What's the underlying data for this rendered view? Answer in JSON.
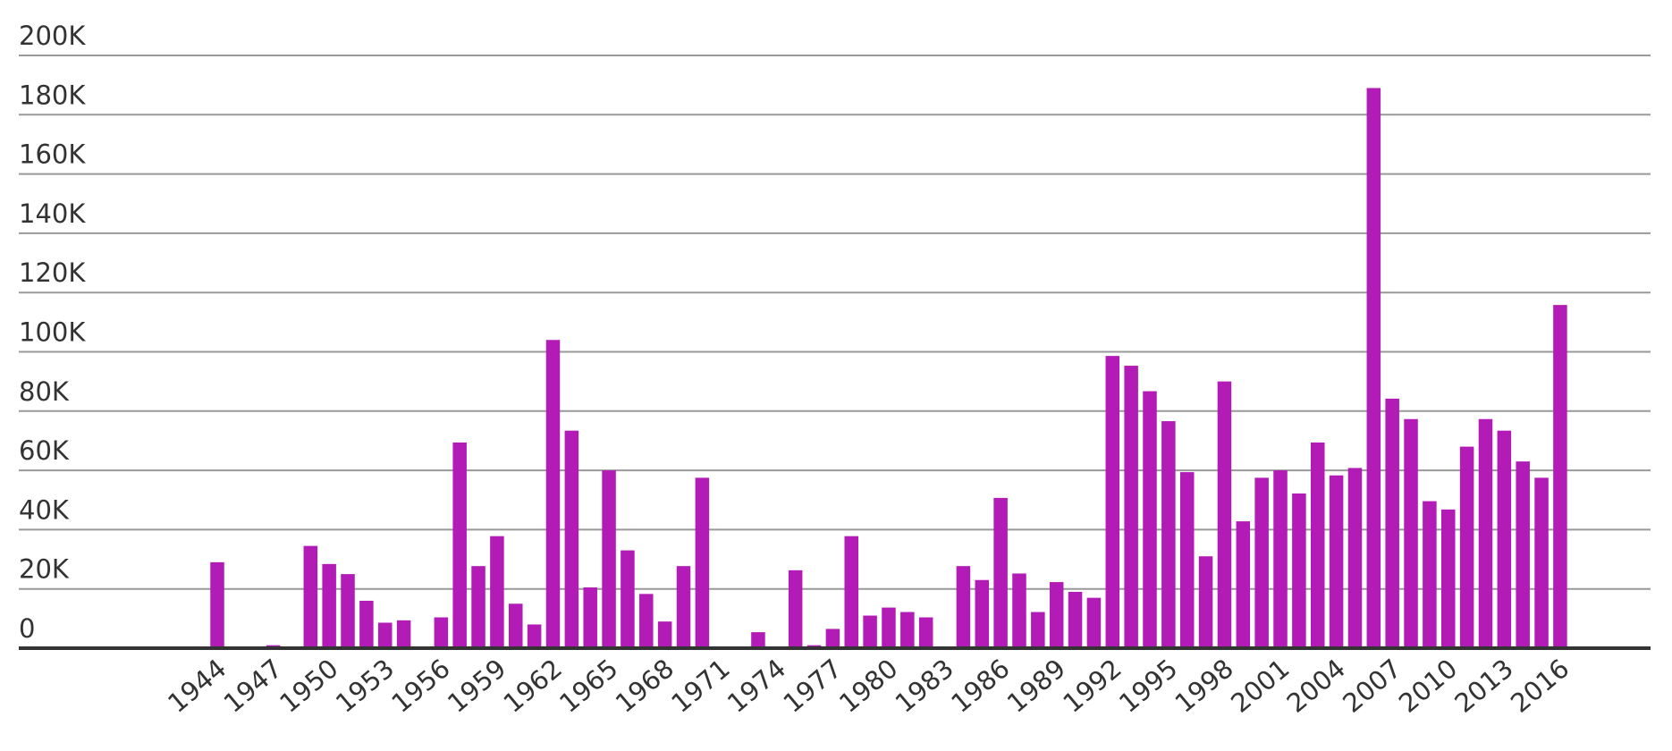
{
  "chart_data": {
    "type": "bar",
    "color": "#b21bb5",
    "grid": true,
    "categories": [
      "1944",
      null,
      null,
      "1947",
      null,
      null,
      "1950",
      null,
      null,
      "1953",
      null,
      null,
      "1956",
      null,
      null,
      "1959",
      null,
      null,
      "1962",
      null,
      null,
      "1965",
      null,
      null,
      "1968",
      null,
      null,
      "1971",
      null,
      null,
      "1974",
      null,
      null,
      "1977",
      null,
      null,
      "1980",
      null,
      null,
      "1983",
      null,
      null,
      "1986",
      null,
      null,
      "1989",
      null,
      null,
      "1992",
      null,
      null,
      "1995",
      null,
      null,
      "1998",
      null,
      null,
      "2001",
      null,
      null,
      "2004",
      null,
      null,
      "2007",
      null,
      null,
      "2010",
      null,
      null,
      "2013",
      null,
      null,
      "2016"
    ],
    "values": [
      29000,
      0,
      0,
      1000,
      0,
      34500,
      28400,
      25000,
      16000,
      8600,
      9400,
      0,
      10400,
      69400,
      27700,
      37800,
      15000,
      8000,
      104000,
      73400,
      20500,
      60000,
      33000,
      18300,
      9000,
      27700,
      57500,
      0,
      0,
      5400,
      0,
      26300,
      1000,
      6500,
      37800,
      11000,
      13700,
      12200,
      10400,
      0,
      27700,
      23000,
      50700,
      25200,
      12200,
      22300,
      19000,
      17000,
      98600,
      95300,
      86700,
      76600,
      59400,
      31000,
      90000,
      42800,
      57500,
      60000,
      52200,
      69400,
      58300,
      60800,
      189000,
      84200,
      77300,
      49600,
      46800,
      68000,
      77300,
      73400,
      63000,
      57500,
      115800
    ],
    "ylim": [
      0,
      200000
    ],
    "yticks": [
      0,
      {
        "value": 20000,
        "label": "20K"
      },
      {
        "value": 40000,
        "label": "40K"
      },
      {
        "value": 60000,
        "label": "60K"
      },
      {
        "value": 80000,
        "label": "80K"
      },
      {
        "value": 100000,
        "label": "100K"
      },
      {
        "value": 120000,
        "label": "120K"
      },
      {
        "value": 140000,
        "label": "140K"
      },
      {
        "value": 160000,
        "label": "160K"
      },
      {
        "value": 180000,
        "label": "180K"
      },
      {
        "value": 200000,
        "label": "200K"
      }
    ]
  }
}
